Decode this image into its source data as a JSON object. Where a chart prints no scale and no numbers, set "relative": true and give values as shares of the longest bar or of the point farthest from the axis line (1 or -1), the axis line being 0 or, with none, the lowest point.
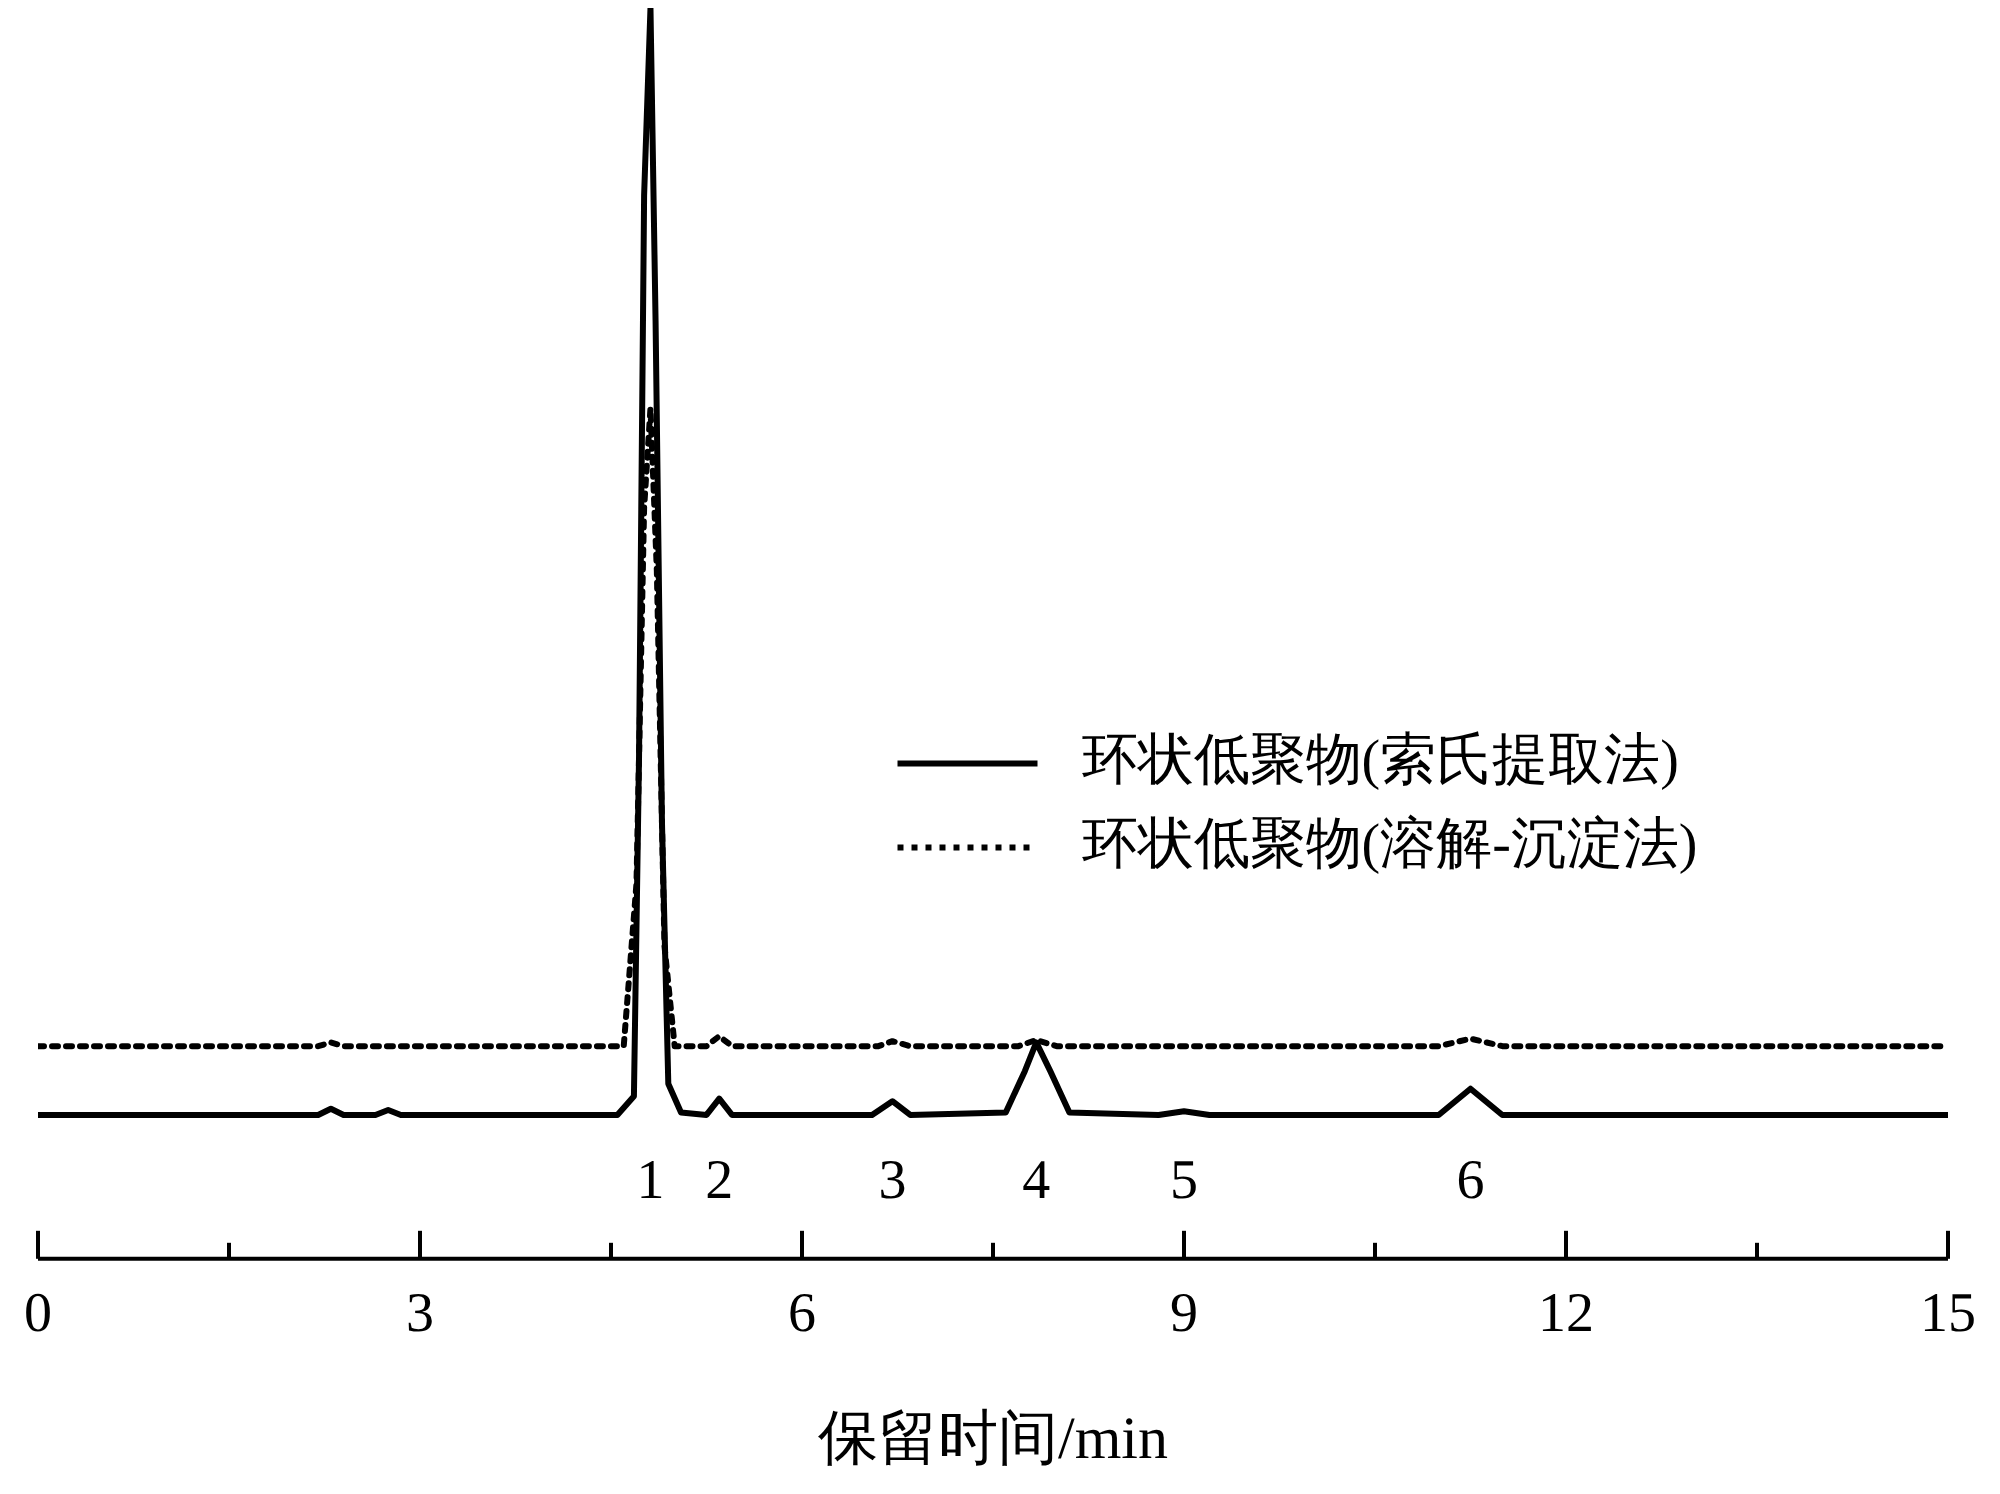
{
  "chart_data": {
    "type": "line",
    "relative": true,
    "xlabel": "保留时间/min",
    "xlim": [
      0,
      15
    ],
    "xticks": [
      0,
      {
        "value": 1.5,
        "label": null
      },
      3,
      {
        "value": 4.5,
        "label": null
      },
      6,
      {
        "value": 7.5,
        "label": null
      },
      9,
      {
        "value": 10.5,
        "label": null
      },
      12,
      {
        "value": 13.5,
        "label": null
      },
      15
    ],
    "grid": false,
    "legend": "right",
    "marker": "none",
    "series": [
      {
        "name": "环状低聚物(索氏提取法)",
        "color": "#000000",
        "line_style": "solid",
        "x": [
          0,
          2.2,
          2.3,
          2.4,
          2.65,
          2.75,
          2.85,
          4.55,
          4.68,
          4.72,
          4.76,
          4.81,
          4.85,
          4.9,
          4.95,
          5.05,
          5.25,
          5.35,
          5.45,
          6.55,
          6.71,
          6.85,
          7.6,
          7.75,
          7.84,
          7.95,
          8.1,
          8.8,
          9.0,
          9.2,
          11.0,
          11.25,
          11.5,
          15
        ],
        "values": [
          0.115,
          0.115,
          0.12,
          0.115,
          0.115,
          0.119,
          0.115,
          0.115,
          0.13,
          0.4,
          0.85,
          1,
          0.75,
          0.35,
          0.14,
          0.117,
          0.115,
          0.128,
          0.115,
          0.115,
          0.126,
          0.115,
          0.117,
          0.15,
          0.173,
          0.15,
          0.117,
          0.115,
          0.118,
          0.115,
          0.115,
          0.136,
          0.115,
          0.115
        ]
      },
      {
        "name": "环状低聚物(溶解-沉淀法)",
        "color": "#000000",
        "line_style": "dotted",
        "x": [
          0,
          2.2,
          2.3,
          2.4,
          4.6,
          4.7,
          4.76,
          4.81,
          4.86,
          4.92,
          5.0,
          5.25,
          5.35,
          5.45,
          6.6,
          6.71,
          6.85,
          7.7,
          7.84,
          8.0,
          11.0,
          11.25,
          11.5,
          15
        ],
        "values": [
          0.17,
          0.17,
          0.173,
          0.17,
          0.17,
          0.3,
          0.6,
          0.68,
          0.55,
          0.25,
          0.17,
          0.17,
          0.178,
          0.17,
          0.17,
          0.174,
          0.17,
          0.17,
          0.175,
          0.17,
          0.17,
          0.176,
          0.17,
          0.17
        ]
      }
    ],
    "annotations": [
      "1",
      "2",
      "3",
      "4",
      "5",
      "6"
    ]
  }
}
